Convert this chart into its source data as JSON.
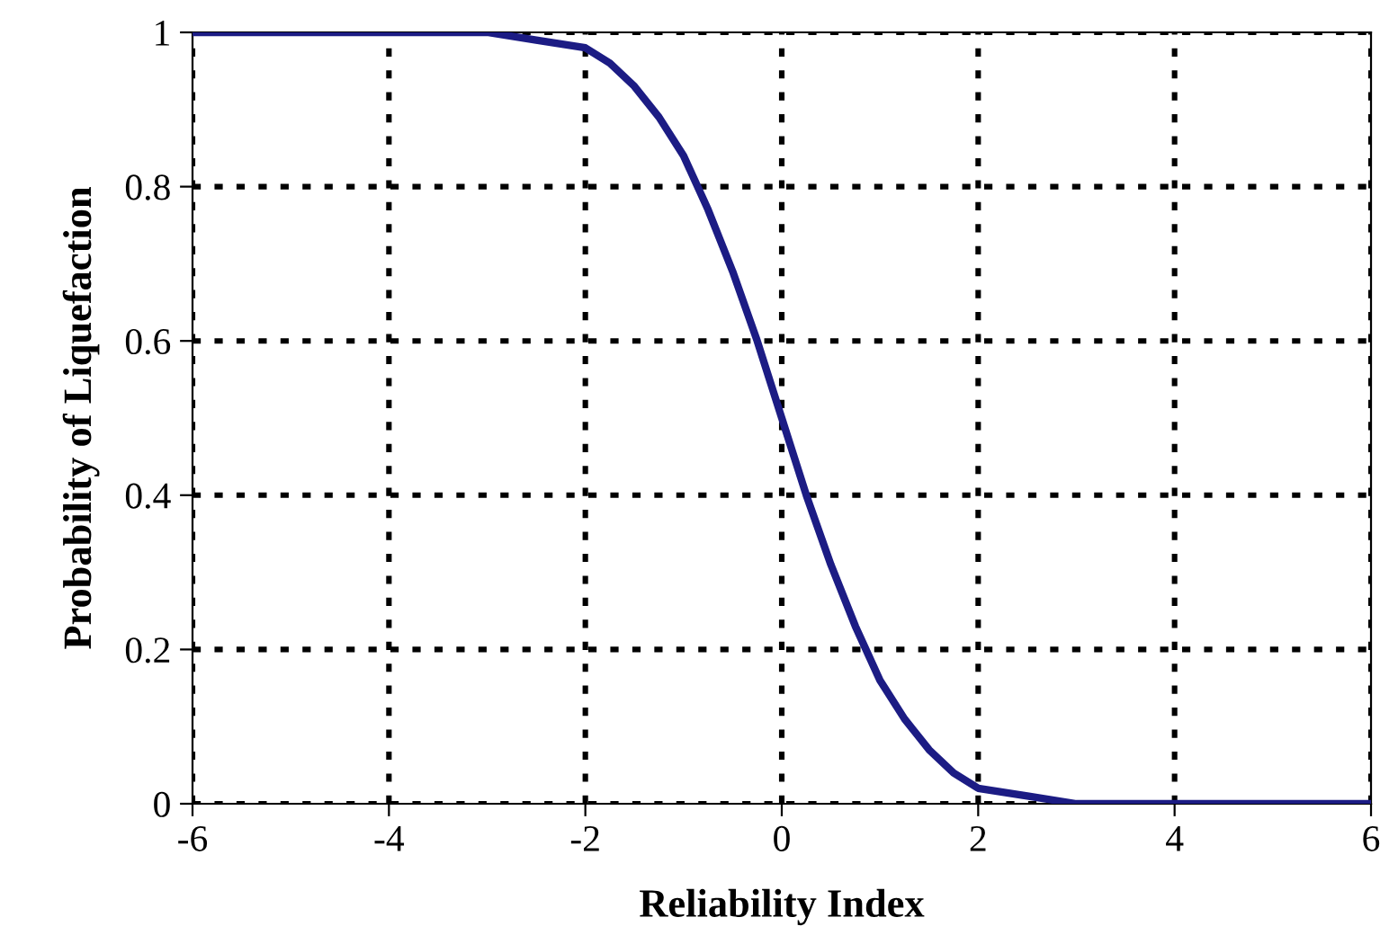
{
  "chart_data": {
    "type": "line",
    "xlabel": "Reliability Index",
    "ylabel": "Probability of Liquefaction",
    "series": [
      {
        "color": "#1c1c84",
        "x": [
          -6,
          -4,
          -3,
          -2.5,
          -2,
          -1.75,
          -1.5,
          -1.25,
          -1,
          -0.75,
          -0.5,
          -0.25,
          0,
          0.25,
          0.5,
          0.75,
          1,
          1.25,
          1.5,
          1.75,
          2,
          2.5,
          3,
          4,
          6
        ],
        "values": [
          1,
          1,
          1,
          0.99,
          0.98,
          0.96,
          0.93,
          0.89,
          0.84,
          0.77,
          0.69,
          0.6,
          0.5,
          0.4,
          0.31,
          0.23,
          0.16,
          0.11,
          0.07,
          0.04,
          0.02,
          0.01,
          0,
          0,
          0
        ]
      }
    ],
    "xlim": [
      -6,
      6
    ],
    "ylim": [
      0,
      1
    ],
    "xticks": [
      -6,
      -4,
      -2,
      0,
      2,
      4,
      6
    ],
    "yticks": [
      0,
      0.2,
      0.4,
      0.6,
      0.8,
      1
    ],
    "grid": true,
    "line_style": "solid",
    "marker": "none"
  }
}
